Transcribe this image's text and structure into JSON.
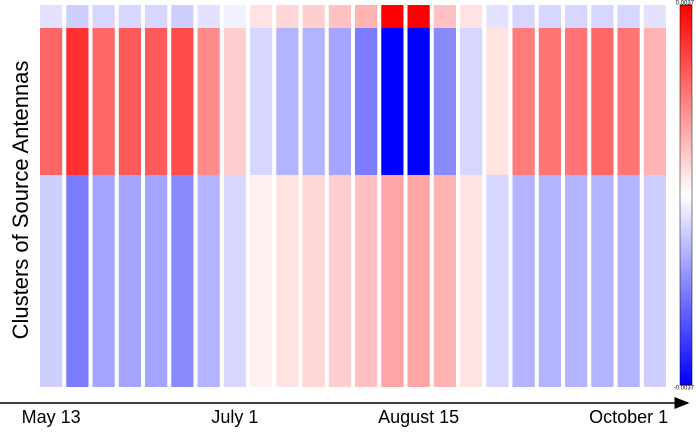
{
  "chart_data": {
    "type": "heatmap",
    "y_label": "Clusters of Source Antennas",
    "categories": [
      "May 13",
      null,
      null,
      null,
      null,
      null,
      null,
      "July 1",
      null,
      null,
      null,
      null,
      null,
      null,
      "August 15",
      null,
      null,
      null,
      null,
      null,
      null,
      null,
      "October 1",
      null
    ],
    "rows": [
      null,
      null,
      null
    ],
    "values": [
      [
        -0.0004,
        -0.0007,
        -0.0006,
        -0.0006,
        -0.0006,
        -0.0007,
        -0.0004,
        -0.0002,
        0.0004,
        0.0006,
        0.0007,
        0.0009,
        0.0011,
        0.0037,
        0.0037,
        0.0009,
        0.0004,
        -0.0004,
        -0.0006,
        -0.0006,
        -0.0006,
        -0.0006,
        -0.0006,
        -0.0004
      ],
      [
        0.0022,
        0.003,
        0.0022,
        0.0024,
        0.0024,
        0.0026,
        0.0017,
        0.0007,
        -0.0006,
        -0.0011,
        -0.0011,
        -0.0013,
        -0.0019,
        -0.0037,
        -0.0037,
        -0.0017,
        -0.0006,
        0.0004,
        0.0019,
        0.002,
        0.002,
        0.0022,
        0.002,
        0.0011
      ],
      [
        -0.0007,
        -0.0019,
        -0.0013,
        -0.0013,
        -0.0013,
        -0.0017,
        -0.0011,
        -0.0006,
        0.0002,
        0.0004,
        0.0006,
        0.0007,
        0.0009,
        0.0013,
        0.0013,
        0.0011,
        0.0004,
        -0.0006,
        -0.0011,
        -0.0011,
        -0.0011,
        -0.0011,
        -0.0011,
        -0.0007
      ]
    ],
    "zlim": [
      -0.0037,
      0.0037
    ],
    "zticks": [
      -0.0037,
      0.0037
    ],
    "colormap": [
      "#0000ff",
      "#ffffff",
      "#ff0000"
    ]
  }
}
